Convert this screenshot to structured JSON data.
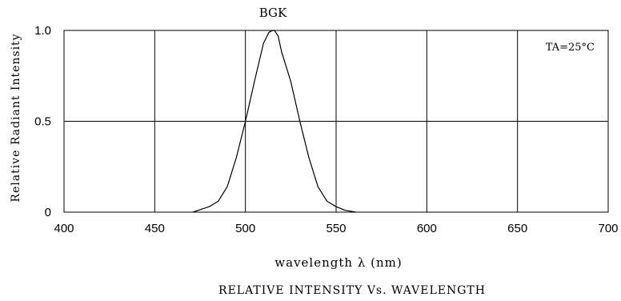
{
  "chart_data": {
    "type": "line",
    "title": "BGK",
    "caption": "RELATIVE INTENSITY Vs. WAVELENGTH",
    "xlabel": "wavelength λ (nm)",
    "ylabel": "Relative Radiant Intensity",
    "annotation": "TA=25°C",
    "xlim": [
      400,
      700
    ],
    "ylim": [
      0,
      1.0
    ],
    "x_ticks": [
      400,
      450,
      500,
      550,
      600,
      650,
      700
    ],
    "x_tick_labels": [
      "400",
      "450",
      "500",
      "550",
      "600",
      "650",
      "700"
    ],
    "y_ticks": [
      0,
      0.5,
      1.0
    ],
    "y_tick_labels": [
      "0",
      "0.5",
      "1.0"
    ],
    "grid": true,
    "series": [
      {
        "x": [
          471,
          480,
          485,
          490,
          495,
          500,
          505,
          510,
          513,
          515,
          516,
          518,
          520,
          525,
          530,
          535,
          540,
          545,
          550,
          555,
          561
        ],
        "y": [
          0.0,
          0.03,
          0.06,
          0.14,
          0.3,
          0.5,
          0.72,
          0.93,
          0.99,
          1.0,
          1.0,
          0.97,
          0.88,
          0.72,
          0.5,
          0.3,
          0.14,
          0.06,
          0.03,
          0.01,
          0.0
        ]
      }
    ]
  }
}
